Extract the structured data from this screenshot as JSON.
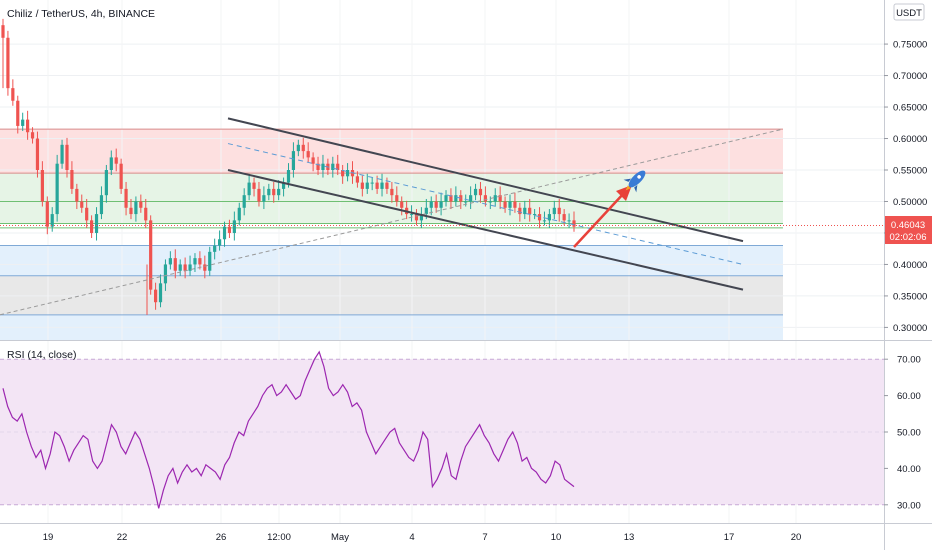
{
  "header": {
    "symbol_title": "Chiliz / TetherUS, 4h, BINANCE"
  },
  "quote_currency_button": "USDT",
  "price_badge": {
    "price": "0.46043",
    "countdown": "02:02:06"
  },
  "rsi_pane": {
    "label": "RSI (14, close)"
  },
  "colors": {
    "bull": "#26a69a",
    "bear": "#ef5350",
    "rsi_line": "#9c27b0",
    "rsi_band": "#f3e5f5",
    "zone_red": "#fde0e0",
    "zone_green": "#e6f4e6",
    "zone_blue": "#e3f0fc",
    "zone_grey": "#e8e8e8",
    "channel": "#434651",
    "midline": "#5b9bd5",
    "arrow": "#e8413a",
    "rocket": "#3a7bd5"
  },
  "icons": {
    "annotation": "rocket-icon"
  },
  "chart_data": [
    {
      "type": "candlestick",
      "title": "Chiliz / TetherUS, 4h, BINANCE",
      "x_tick_labels": [
        "19",
        "22",
        "26",
        "12:00",
        "May",
        "4",
        "7",
        "10",
        "13",
        "17",
        "20"
      ],
      "y_tick_labels": [
        "0.30000",
        "0.35000",
        "0.40000",
        "0.45000",
        "0.50000",
        "0.55000",
        "0.60000",
        "0.65000",
        "0.70000",
        "0.75000"
      ],
      "ylim": [
        0.28,
        0.82
      ],
      "current_price": 0.46043,
      "close_series_approx": [
        0.76,
        0.68,
        0.66,
        0.62,
        0.63,
        0.61,
        0.6,
        0.55,
        0.5,
        0.46,
        0.48,
        0.56,
        0.59,
        0.55,
        0.52,
        0.5,
        0.49,
        0.47,
        0.45,
        0.48,
        0.51,
        0.55,
        0.57,
        0.56,
        0.52,
        0.49,
        0.48,
        0.5,
        0.49,
        0.47,
        0.36,
        0.34,
        0.37,
        0.4,
        0.41,
        0.39,
        0.4,
        0.39,
        0.4,
        0.41,
        0.4,
        0.39,
        0.42,
        0.43,
        0.44,
        0.46,
        0.45,
        0.47,
        0.49,
        0.51,
        0.53,
        0.52,
        0.5,
        0.51,
        0.52,
        0.51,
        0.52,
        0.53,
        0.55,
        0.58,
        0.59,
        0.58,
        0.57,
        0.56,
        0.55,
        0.56,
        0.55,
        0.56,
        0.55,
        0.54,
        0.55,
        0.54,
        0.53,
        0.52,
        0.53,
        0.53,
        0.52,
        0.53,
        0.52,
        0.51,
        0.5,
        0.49,
        0.48,
        0.48,
        0.47,
        0.48,
        0.49,
        0.5,
        0.49,
        0.5,
        0.51,
        0.5,
        0.51,
        0.5,
        0.5,
        0.51,
        0.52,
        0.51,
        0.5,
        0.5,
        0.51,
        0.5,
        0.49,
        0.5,
        0.49,
        0.48,
        0.49,
        0.48,
        0.48,
        0.47,
        0.47,
        0.48,
        0.49,
        0.48,
        0.47,
        0.47,
        0.46
      ],
      "zones": [
        {
          "from": 0.545,
          "to": 0.615,
          "color": "#fde0e0"
        },
        {
          "from": 0.465,
          "to": 0.545,
          "color": "#e6f4e6"
        },
        {
          "from": 0.382,
          "to": 0.43,
          "color": "#e3f0fc"
        },
        {
          "from": 0.32,
          "to": 0.382,
          "color": "#e8e8e8"
        },
        {
          "from": 0.28,
          "to": 0.32,
          "color": "#e3f0fc"
        }
      ],
      "horizontal_levels": [
        0.615,
        0.545,
        0.5,
        0.465,
        0.458,
        0.43,
        0.382,
        0.32
      ],
      "channel_upper": [
        [
          0,
          0.632
        ],
        [
          1,
          0.437
        ]
      ],
      "channel_lower": [
        [
          0,
          0.55
        ],
        [
          1,
          0.36
        ]
      ],
      "channel_mid": [
        [
          0,
          0.592
        ],
        [
          1,
          0.4
        ]
      ],
      "trend_dashed": [
        [
          0,
          0.32
        ],
        [
          1,
          0.615
        ]
      ]
    },
    {
      "type": "line",
      "title": "RSI (14, close)",
      "y_tick_labels": [
        "30.00",
        "40.00",
        "50.00",
        "60.00",
        "70.00"
      ],
      "ylim": [
        25,
        75
      ],
      "band": [
        30,
        70
      ],
      "values": [
        62,
        57,
        54,
        53,
        55,
        50,
        46,
        43,
        45,
        40,
        44,
        50,
        49,
        46,
        42,
        45,
        47,
        49,
        48,
        42,
        40,
        42,
        47,
        52,
        50,
        46,
        44,
        47,
        50,
        48,
        44,
        40,
        35,
        29,
        34,
        38,
        40,
        36,
        39,
        41,
        39,
        40,
        38,
        41,
        40,
        39,
        37,
        41,
        43,
        47,
        50,
        49,
        53,
        55,
        57,
        60,
        62,
        63,
        60,
        61,
        63,
        61,
        59,
        60,
        64,
        67,
        70,
        72,
        68,
        62,
        60,
        61,
        63,
        61,
        57,
        58,
        56,
        50,
        47,
        44,
        46,
        48,
        50,
        51,
        47,
        45,
        43,
        42,
        45,
        50,
        48,
        35,
        37,
        40,
        44,
        38,
        37,
        42,
        46,
        48,
        50,
        52,
        49,
        47,
        44,
        42,
        45,
        48,
        50,
        47,
        42,
        43,
        40,
        39,
        37,
        36,
        38,
        42,
        41,
        37,
        36,
        35
      ]
    }
  ]
}
